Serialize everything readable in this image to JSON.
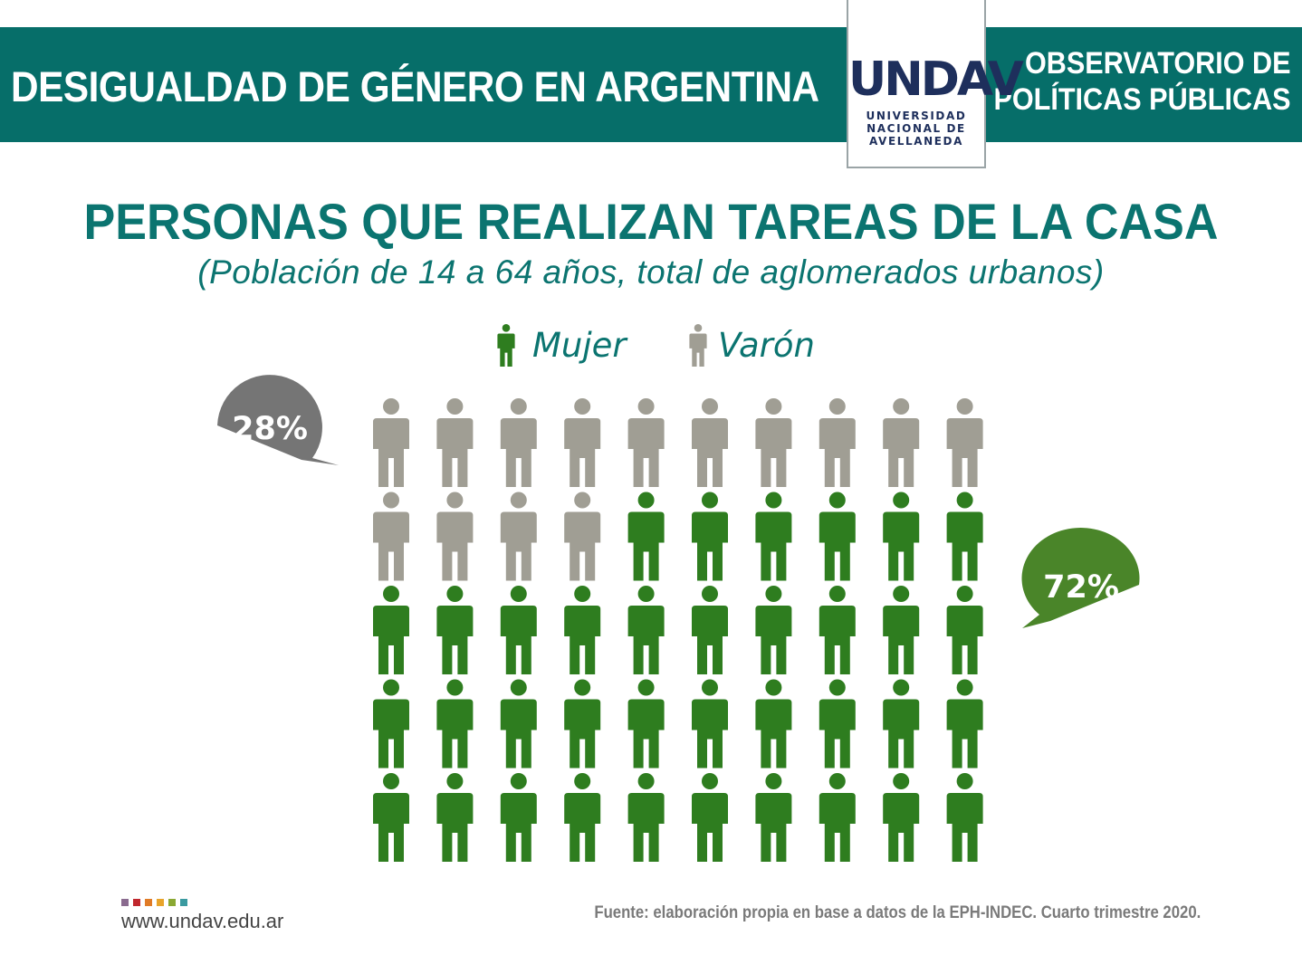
{
  "header": {
    "banner_title": "DESIGUALDAD DE GÉNERO EN ARGENTINA",
    "observatorio_line1": "OBSERVATORIO DE",
    "observatorio_line2": "POLÍTICAS PÚBLICAS",
    "logo_word": "UNDAV",
    "logo_sub_line1": "UNIVERSIDAD",
    "logo_sub_line2": "NACIONAL DE",
    "logo_sub_line3": "AVELLANEDA"
  },
  "chart_data": {
    "type": "pictogram",
    "title": "PERSONAS QUE REALIZAN TAREAS DE LA CASA",
    "subtitle": "(Población de 14 a 64 años, total de aglomerados urbanos)",
    "total_icons": 50,
    "columns": 10,
    "series": [
      {
        "name": "Varón",
        "value": 28,
        "label": "28%",
        "color": "#a09e94",
        "bubble_color": "#757575"
      },
      {
        "name": "Mujer",
        "value": 72,
        "label": "72%",
        "color": "#2e7d1f",
        "bubble_color": "#4a8529"
      }
    ],
    "legend_order": [
      "Mujer",
      "Varón"
    ]
  },
  "footer": {
    "url": "www.undav.edu.ar",
    "source": "Fuente: elaboración propia en base a datos de la EPH-INDEC. Cuarto trimestre 2020.",
    "dot_colors": [
      "#8a6b8f",
      "#c0272d",
      "#e07b26",
      "#e8a42a",
      "#8aa833",
      "#3a9aa0"
    ]
  },
  "colors": {
    "teal": "#066e69",
    "text_teal": "#0b7470"
  }
}
